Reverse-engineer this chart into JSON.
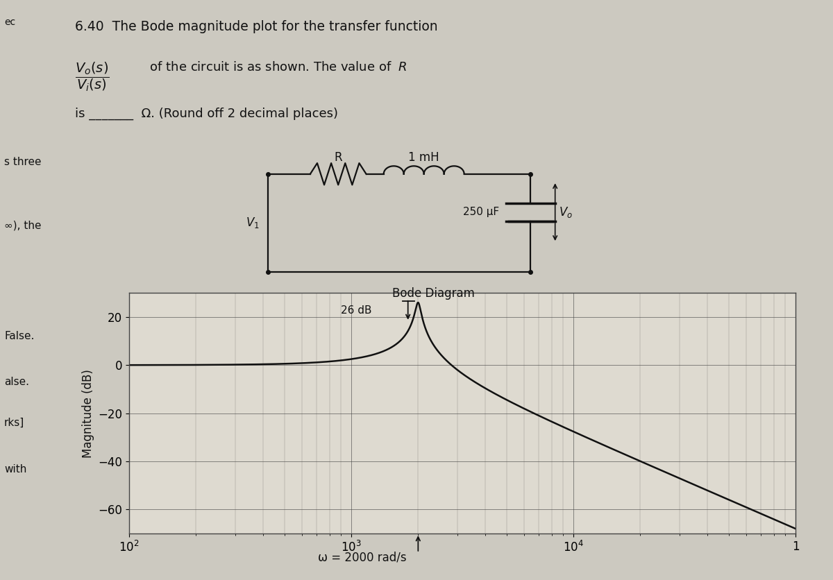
{
  "title": "Bode Diagram",
  "xlabel_bottom": "ω = 2000 rad/s",
  "ylabel": "Magnitude (dB)",
  "ylim": [
    -70,
    30
  ],
  "yticks": [
    -60,
    -40,
    -20,
    0,
    20
  ],
  "xlim_log": [
    100,
    100000
  ],
  "omega_0": 2000,
  "L": 0.001,
  "C": 0.00025,
  "peak_label": "26 dB",
  "background_color": "#ccc9c0",
  "plot_bg_color": "#dedad0",
  "grid_color": "#444444",
  "line_color": "#111111",
  "text_color": "#111111",
  "title_text": "6.40  The Bode magnitude plot for the transfer function",
  "line3": "is _______  Ω. (Round off 2 decimal places)",
  "circuit_label_R": "R",
  "circuit_label_L": "1 mH",
  "circuit_label_C": "250 µF",
  "circuit_label_V1": "V",
  "circuit_label_Vo": "V",
  "left_text1": "ec",
  "left_text2": "s three",
  "left_text3": "∞), the",
  "left_text4": "False.",
  "left_text5": "alse.",
  "left_text6": "rks]",
  "left_text7": "with"
}
